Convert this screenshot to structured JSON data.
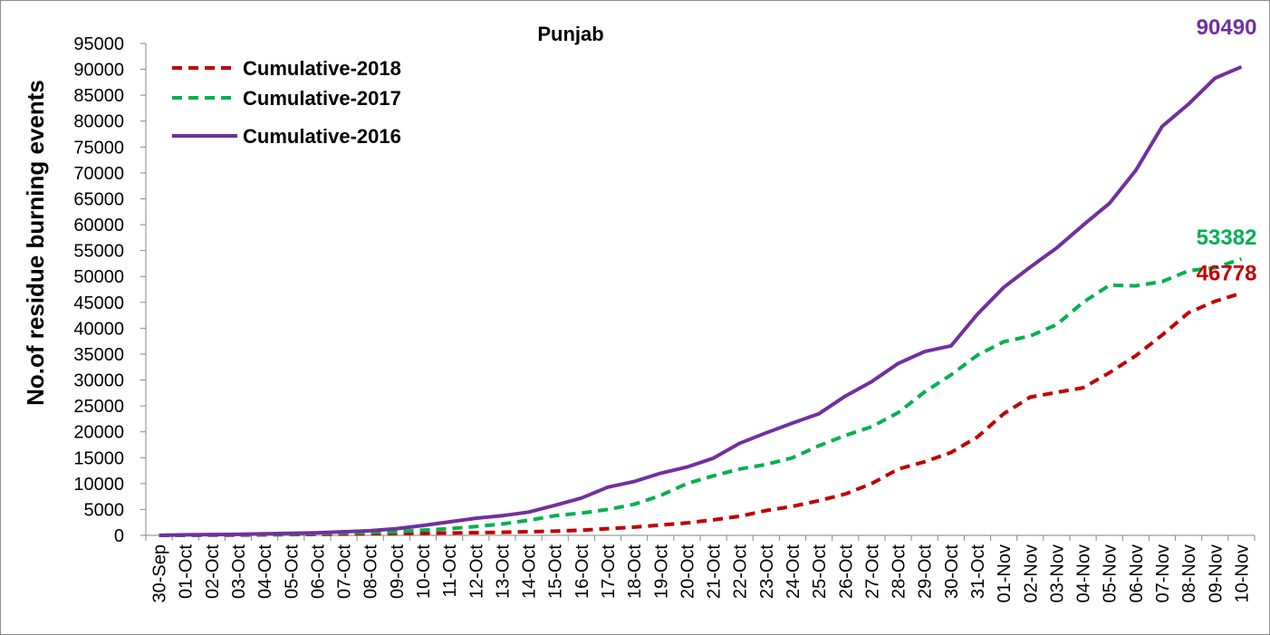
{
  "chart_data": {
    "type": "line",
    "title": "Punjab",
    "ylabel": "No.of residue burning events",
    "xlabel": "",
    "ylim": [
      0,
      95000
    ],
    "yticks": [
      "0",
      "5000",
      "10000",
      "15000",
      "20000",
      "25000",
      "30000",
      "35000",
      "40000",
      "45000",
      "50000",
      "55000",
      "60000",
      "65000",
      "70000",
      "75000",
      "80000",
      "85000",
      "90000",
      "95000"
    ],
    "categories": [
      "30-Sep",
      "01-Oct",
      "02-Oct",
      "03-Oct",
      "04-Oct",
      "05-Oct",
      "06-Oct",
      "07-Oct",
      "08-Oct",
      "09-Oct",
      "10-Oct",
      "11-Oct",
      "12-Oct",
      "13-Oct",
      "14-Oct",
      "15-Oct",
      "16-Oct",
      "17-Oct",
      "18-Oct",
      "19-Oct",
      "20-Oct",
      "21-Oct",
      "22-Oct",
      "23-Oct",
      "24-Oct",
      "25-Oct",
      "26-Oct",
      "27-Oct",
      "28-Oct",
      "29-Oct",
      "30-Oct",
      "31-Oct",
      "01-Nov",
      "02-Nov",
      "03-Nov",
      "04-Nov",
      "05-Nov",
      "06-Nov",
      "07-Nov",
      "08-Nov",
      "09-Nov",
      "10-Nov"
    ],
    "grid": false,
    "legend_position": "top-left",
    "series": [
      {
        "name": "Cumulative-2018",
        "color": "#c00000",
        "style": "dashed",
        "end_label": "46778",
        "values": [
          0,
          10,
          30,
          60,
          100,
          150,
          200,
          250,
          300,
          350,
          400,
          450,
          500,
          600,
          700,
          800,
          1000,
          1300,
          1600,
          2000,
          2400,
          3000,
          3700,
          4800,
          5600,
          6700,
          8000,
          10000,
          12800,
          14200,
          16000,
          19000,
          23500,
          26700,
          27600,
          28500,
          31400,
          34700,
          38700,
          43000,
          45200,
          46778
        ]
      },
      {
        "name": "Cumulative-2017",
        "color": "#00b050",
        "style": "dashed",
        "end_label": "53382",
        "values": [
          0,
          50,
          100,
          150,
          200,
          250,
          350,
          450,
          550,
          700,
          1000,
          1300,
          1700,
          2200,
          2900,
          3800,
          4300,
          5000,
          6000,
          7700,
          10000,
          11500,
          12800,
          13700,
          15000,
          17300,
          19300,
          21000,
          23700,
          27700,
          31000,
          34800,
          37400,
          38500,
          40700,
          45000,
          48300,
          48200,
          49000,
          51100,
          51700,
          53382
        ]
      },
      {
        "name": "Cumulative-2016",
        "color": "#7030a0",
        "style": "solid",
        "end_label": "90490",
        "values": [
          0,
          100,
          150,
          200,
          300,
          400,
          500,
          700,
          900,
          1300,
          1900,
          2600,
          3300,
          3800,
          4500,
          5800,
          7200,
          9300,
          10400,
          12000,
          13200,
          14900,
          17800,
          19800,
          21700,
          23500,
          26900,
          29700,
          33200,
          35500,
          36600,
          42700,
          47900,
          51800,
          55500,
          59900,
          64100,
          70500,
          79000,
          83300,
          88300,
          90490
        ]
      }
    ]
  }
}
